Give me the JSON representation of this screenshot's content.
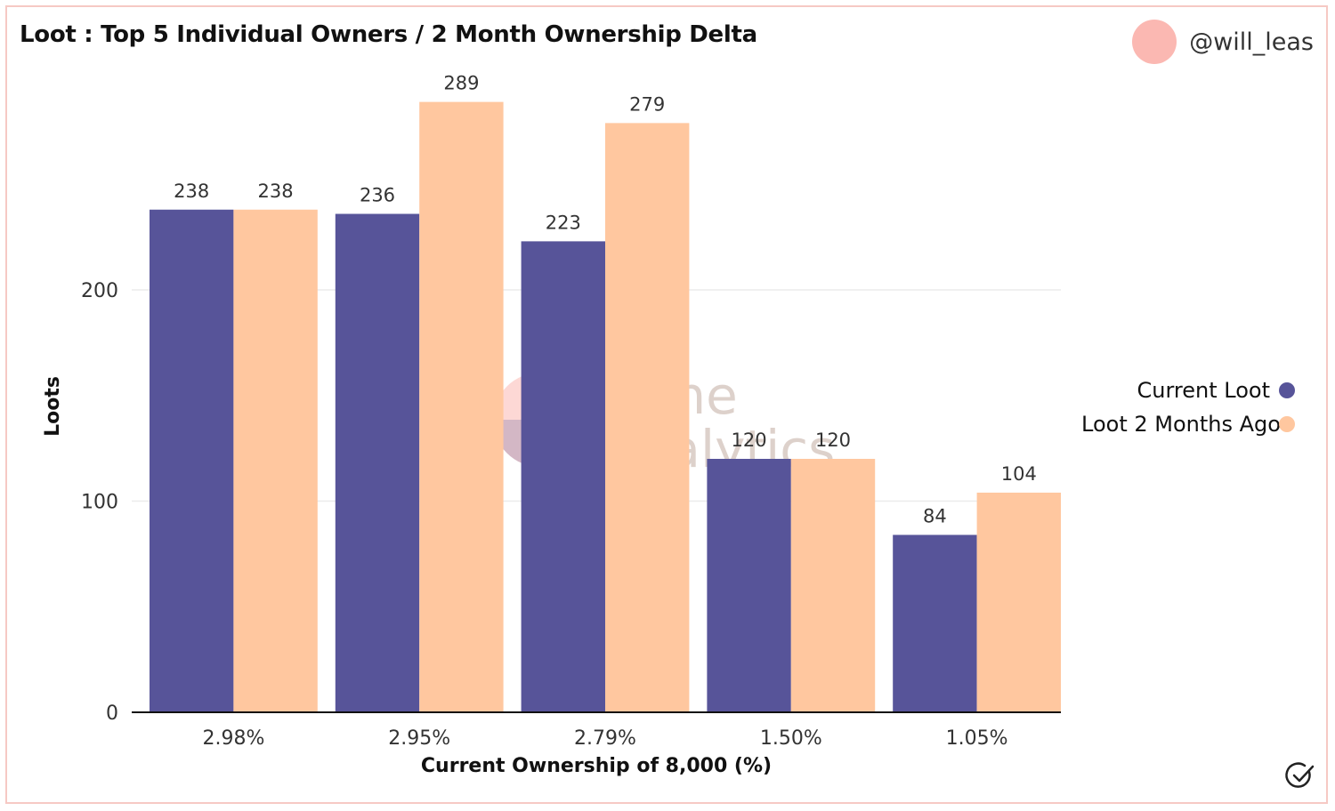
{
  "header": {
    "title": "Loot : Top 5 Individual Owners / 2 Month Ownership Delta"
  },
  "user": {
    "handle": "@will_leas"
  },
  "watermark": {
    "line1": "Dune",
    "line2": "Analytics"
  },
  "colors": {
    "current": "#575499",
    "ago": "#ffc79f",
    "border": "#f6c9c4",
    "avatar": "#fbb8b2"
  },
  "chart_data": {
    "type": "bar",
    "title": "Loot : Top 5 Individual Owners / 2 Month Ownership Delta",
    "xlabel": "Current Ownership of 8,000 (%)",
    "ylabel": "Loots",
    "categories": [
      "2.98%",
      "2.95%",
      "2.79%",
      "1.50%",
      "1.05%"
    ],
    "series": [
      {
        "name": "Current Loot",
        "color": "#575499",
        "values": [
          238,
          236,
          223,
          120,
          84
        ]
      },
      {
        "name": "Loot 2 Months Ago",
        "color": "#ffc79f",
        "values": [
          238,
          289,
          279,
          120,
          104
        ]
      }
    ],
    "yticks": [
      0,
      100,
      200
    ],
    "ylim": [
      0,
      300
    ],
    "legend_position": "right"
  },
  "legend": {
    "items": [
      {
        "label": "Current Loot"
      },
      {
        "label": "Loot 2 Months Ago"
      }
    ]
  },
  "icons": {
    "verified": "check-circle-icon"
  }
}
